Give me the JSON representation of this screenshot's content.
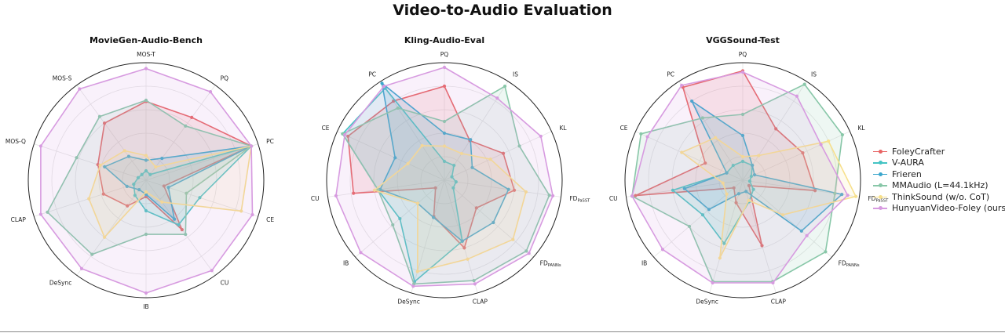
{
  "figure": {
    "title": "Video-to-Audio Evaluation"
  },
  "colors": {
    "FoleyCrafter": "#e86464",
    "V-AURA": "#44c4c4",
    "Frieren": "#3aa6cc",
    "MMAudio (L=44.1kHz)": "#88c7a8",
    "ThinkSound (w/o. CoT)": "#f7e08c",
    "HunyuanVideo-Foley (ours)": "#d79be0"
  },
  "legend": [
    {
      "name": "FoleyCrafter",
      "color": "#e86464"
    },
    {
      "name": "V-AURA",
      "color": "#44c4c4"
    },
    {
      "name": "Frieren",
      "color": "#3aa6cc"
    },
    {
      "name": "MMAudio (L=44.1kHz)",
      "color": "#88c7a8"
    },
    {
      "name": "ThinkSound (w/o. CoT)",
      "color": "#f7e08c"
    },
    {
      "name": "HunyuanVideo-Foley (ours)",
      "color": "#d79be0"
    }
  ],
  "chart_data": [
    {
      "type": "radar",
      "title": "MovieGen-Audio-Bench",
      "axes": [
        "PQ",
        "PC",
        "CE",
        "CU",
        "IB",
        "DeSync",
        "CLAP",
        "MOS-Q",
        "MOS-S",
        "MOS-T"
      ],
      "rlim": [
        0,
        1
      ],
      "grid": true,
      "series": [
        {
          "name": "FoleyCrafter",
          "values": [
            0.66,
            0.94,
            0.16,
            0.52,
            0.14,
            0.27,
            0.38,
            0.43,
            0.6,
            0.67
          ]
        },
        {
          "name": "V-AURA",
          "values": [
            0.06,
            0.94,
            0.48,
            0.47,
            0.26,
            0.16,
            0.11,
            0.07,
            0.06,
            0.08
          ]
        },
        {
          "name": "Frieren",
          "values": [
            0.23,
            0.94,
            0.2,
            0.41,
            0.12,
            0.1,
            0.17,
            0.37,
            0.25,
            0.17
          ]
        },
        {
          "name": "MMAudio (L=44.1kHz)",
          "values": [
            0.57,
            0.94,
            0.36,
            0.57,
            0.46,
            0.78,
            0.88,
            0.62,
            0.67,
            0.68
          ]
        },
        {
          "name": "ThinkSound (w/o. CoT)",
          "values": [
            0.14,
            0.94,
            0.85,
            0.23,
            0.1,
            0.6,
            0.51,
            0.41,
            0.31,
            0.21
          ]
        },
        {
          "name": "HunyuanVideo-Foley (ours)",
          "values": [
            0.93,
            0.94,
            0.95,
            0.95,
            0.96,
            0.93,
            0.94,
            0.94,
            0.96,
            0.95
          ]
        }
      ]
    },
    {
      "type": "radar",
      "title": "Kling-Audio-Eval",
      "axes": [
        "IS",
        "KL",
        "FD_PaSST",
        "FD_PANNs",
        "CLAP",
        "DeSync",
        "IB",
        "CU",
        "CE",
        "PC",
        "PQ"
      ],
      "axis_labels": [
        {
          "main": "IS",
          "sub": ""
        },
        {
          "main": "KL",
          "sub": ""
        },
        {
          "main": "FD",
          "sub": "PaSST"
        },
        {
          "main": "FD",
          "sub": "PANNs"
        },
        {
          "main": "CLAP",
          "sub": ""
        },
        {
          "main": "DeSync",
          "sub": ""
        },
        {
          "main": "IB",
          "sub": ""
        },
        {
          "main": "CU",
          "sub": ""
        },
        {
          "main": "CE",
          "sub": ""
        },
        {
          "main": "PC",
          "sub": ""
        },
        {
          "main": "PQ",
          "sub": ""
        }
      ],
      "rlim": [
        0,
        1
      ],
      "grid": true,
      "series": [
        {
          "name": "FoleyCrafter",
          "values": [
            0.4,
            0.55,
            0.6,
            0.36,
            0.6,
            0.32,
            0.1,
            0.78,
            0.9,
            0.8,
            0.8
          ]
        },
        {
          "name": "V-AURA",
          "values": [
            0.15,
            0.07,
            0.1,
            0.1,
            0.54,
            0.9,
            0.5,
            0.57,
            0.95,
            0.93,
            0.16
          ]
        },
        {
          "name": "Frieren",
          "values": [
            0.41,
            0.26,
            0.55,
            0.55,
            0.54,
            0.33,
            0.3,
            0.55,
            0.46,
            0.98,
            0.4
          ]
        },
        {
          "name": "MMAudio (L=44.1kHz)",
          "values": [
            0.95,
            0.7,
            0.9,
            0.92,
            0.89,
            0.92,
            0.58,
            0.57,
            0.95,
            0.73,
            0.5
          ]
        },
        {
          "name": "ThinkSound (w/o. CoT)",
          "values": [
            0.27,
            0.43,
            0.7,
            0.77,
            0.7,
            0.81,
            0.3,
            0.6,
            0.34,
            0.35,
            0.29
          ]
        },
        {
          "name": "HunyuanVideo-Foley (ours)",
          "values": [
            0.83,
            0.9,
            0.93,
            0.95,
            0.92,
            0.94,
            0.94,
            0.93,
            0.93,
            0.95,
            0.96
          ]
        }
      ]
    },
    {
      "type": "radar",
      "title": "VGGSound-Test",
      "axes": [
        "IS",
        "KL",
        "FD_PaSST",
        "FD_PANNs",
        "CLAP",
        "DeSync",
        "IB",
        "CU",
        "CE",
        "PC",
        "PQ"
      ],
      "axis_labels": [
        {
          "main": "IS",
          "sub": ""
        },
        {
          "main": "KL",
          "sub": ""
        },
        {
          "main": "FD",
          "sub": "PaSST"
        },
        {
          "main": "FD",
          "sub": "PANNs"
        },
        {
          "main": "CLAP",
          "sub": ""
        },
        {
          "main": "DeSync",
          "sub": ""
        },
        {
          "main": "IB",
          "sub": ""
        },
        {
          "main": "CU",
          "sub": ""
        },
        {
          "main": "CE",
          "sub": ""
        },
        {
          "main": "PC",
          "sub": ""
        },
        {
          "main": "PQ",
          "sub": ""
        }
      ],
      "rlim": [
        0,
        1
      ],
      "grid": true,
      "series": [
        {
          "name": "FoleyCrafter",
          "values": [
            0.52,
            0.56,
            0.62,
            0.07,
            0.58,
            0.2,
            0.1,
            0.92,
            0.35,
            0.94,
            0.93
          ]
        },
        {
          "name": "V-AURA",
          "values": [
            0.15,
            0.08,
            0.06,
            0.12,
            0.19,
            0.56,
            0.45,
            0.6,
            0.15,
            0.15,
            0.16
          ]
        },
        {
          "name": "Frieren",
          "values": [
            0.15,
            0.11,
            0.85,
            0.66,
            0.1,
            0.12,
            0.38,
            0.5,
            0.15,
            0.8,
            0.38
          ]
        },
        {
          "name": "MMAudio (L=44.1kHz)",
          "values": [
            0.97,
            0.93,
            0.79,
            0.93,
            0.9,
            0.9,
            0.6,
            0.95,
            0.95,
            0.63,
            0.56
          ]
        },
        {
          "name": "ThinkSound (w/o. CoT)",
          "values": [
            0.25,
            0.8,
            0.97,
            0.45,
            0.18,
            0.69,
            0.18,
            0.17,
            0.57,
            0.43,
            0.2
          ]
        },
        {
          "name": "HunyuanVideo-Foley (ours)",
          "values": [
            0.85,
            0.73,
            0.9,
            0.72,
            0.91,
            0.91,
            0.9,
            0.95,
            0.89,
            0.96,
            0.92
          ]
        }
      ]
    }
  ]
}
